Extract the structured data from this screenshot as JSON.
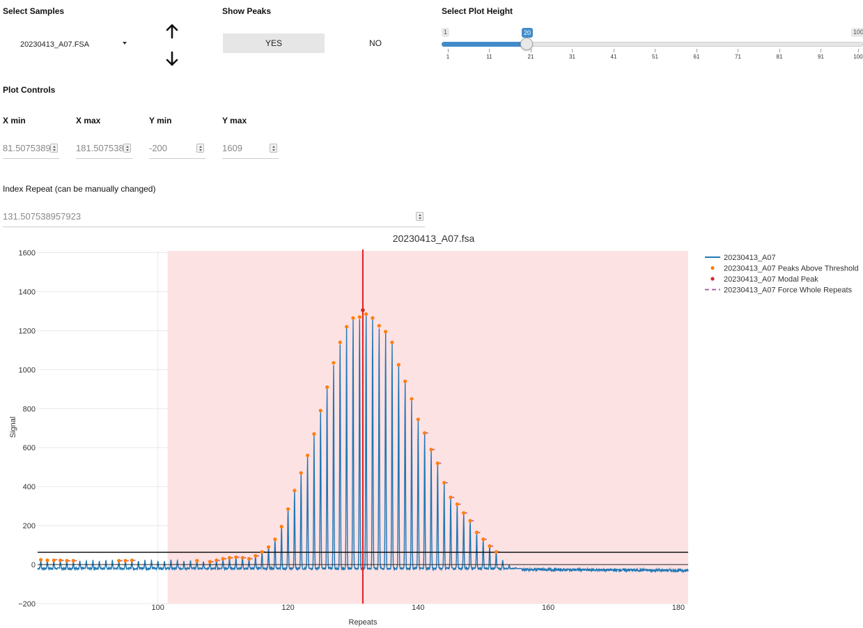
{
  "controls": {
    "select_samples_label": "Select Samples",
    "selected_sample": "20230413_A07.FSA",
    "show_peaks_label": "Show Peaks",
    "yes_label": "YES",
    "no_label": "NO",
    "plot_height_label": "Select Plot Height",
    "slider": {
      "min_label": "1",
      "max_label": "100",
      "value_label": "20",
      "value": 20,
      "min": 1,
      "max": 100,
      "ticks": [
        "1",
        "11",
        "21",
        "31",
        "41",
        "51",
        "61",
        "71",
        "81",
        "91",
        "100"
      ]
    }
  },
  "plot_controls": {
    "title": "Plot Controls",
    "xmin_label": "X min",
    "xmin_value": "81.5075389",
    "xmax_label": "X max",
    "xmax_value": "181.507538",
    "ymin_label": "Y min",
    "ymin_value": "-200",
    "ymax_label": "Y max",
    "ymax_value": "1609"
  },
  "index_repeat": {
    "label": "Index Repeat (can be manually changed)",
    "value": "131.507538957923"
  },
  "icons": {
    "up": "arrow-up-icon",
    "down": "arrow-down-icon"
  },
  "colors": {
    "trace": "#1f77b4",
    "peaks": "#ff7f0e",
    "modal": "#d62728",
    "force": "#ab63a6",
    "shade": "#fde2e4",
    "index_line": "#e31a1c",
    "accent": "#428bca"
  },
  "chart_data": {
    "type": "line",
    "title": "20230413_A07.fsa",
    "xlabel": "Repeats",
    "ylabel": "Signal",
    "xlim": [
      81.5075,
      181.5075
    ],
    "ylim": [
      -200,
      1609
    ],
    "xticks": [
      "100",
      "120",
      "140",
      "160",
      "180"
    ],
    "yticks": [
      "−200",
      "0",
      "200",
      "400",
      "600",
      "800",
      "1000",
      "1200",
      "1400",
      "1600"
    ],
    "shaded_region": [
      101.5,
      181.5
    ],
    "index_line_x": 131.5,
    "threshold_y": 63,
    "legend": [
      {
        "name": "20230413_A07",
        "style": "line"
      },
      {
        "name": "20230413_A07 Peaks Above Threshold",
        "style": "dot"
      },
      {
        "name": "20230413_A07 Modal Peak",
        "style": "dot"
      },
      {
        "name": "20230413_A07 Force Whole Repeats",
        "style": "dash"
      }
    ],
    "peaks_x": [
      82,
      83,
      84,
      85,
      86,
      87,
      94,
      95,
      96,
      106,
      108,
      109,
      110,
      111,
      112,
      113,
      114,
      115,
      116,
      117,
      118,
      119,
      120,
      121,
      122,
      123,
      124,
      125,
      126,
      127,
      128,
      129,
      130,
      131,
      132,
      133,
      134,
      135,
      136,
      137,
      138,
      139,
      140,
      141,
      142,
      143,
      144,
      145,
      146,
      147,
      148,
      149,
      150,
      151,
      152
    ],
    "peaks_y": [
      25,
      22,
      22,
      22,
      20,
      20,
      20,
      20,
      22,
      20,
      15,
      22,
      30,
      35,
      38,
      35,
      30,
      45,
      65,
      90,
      130,
      195,
      285,
      380,
      470,
      560,
      670,
      790,
      910,
      1035,
      1140,
      1220,
      1265,
      1270,
      1285,
      1265,
      1225,
      1195,
      1140,
      1025,
      940,
      850,
      745,
      675,
      590,
      520,
      420,
      345,
      310,
      265,
      225,
      165,
      130,
      95,
      65
    ],
    "modal_peak": {
      "x": 131.5,
      "y": 1305
    },
    "force_repeats_x": [
      84,
      85,
      86,
      87,
      94,
      95,
      96,
      108,
      109,
      110,
      111,
      112,
      113,
      114,
      115,
      116,
      141,
      142,
      143,
      144,
      145,
      146,
      147,
      148,
      149,
      150,
      151,
      152
    ],
    "force_repeats_y": [
      25,
      22,
      20,
      20,
      20,
      20,
      22,
      15,
      22,
      30,
      35,
      38,
      35,
      30,
      45,
      65,
      675,
      590,
      520,
      420,
      345,
      310,
      265,
      225,
      165,
      130,
      95,
      65
    ]
  }
}
